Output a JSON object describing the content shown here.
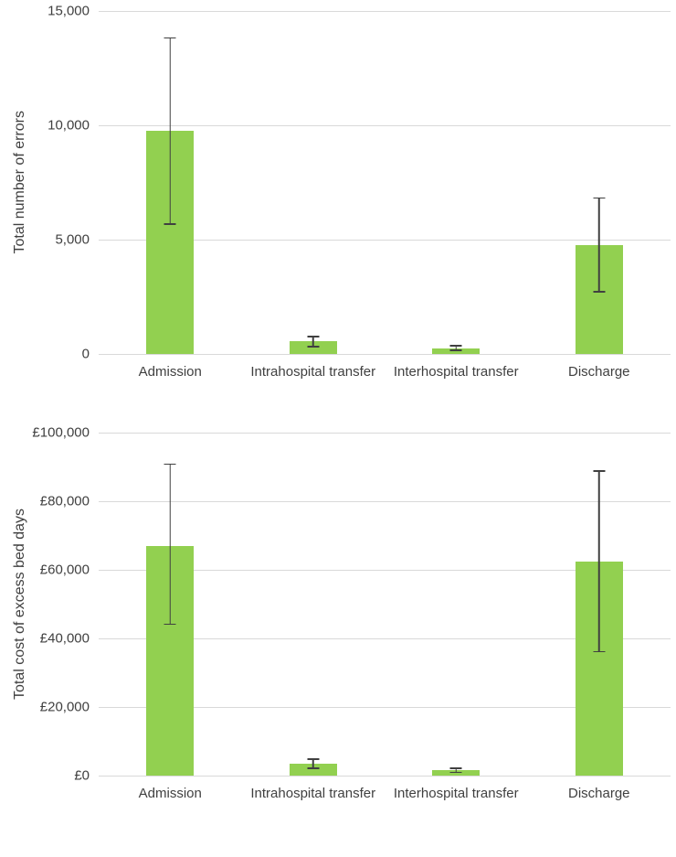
{
  "colors": {
    "bar": "#92d050",
    "error_bar": "#404040",
    "gridline": "#d9d9d9",
    "text": "#404040"
  },
  "chart_data": [
    {
      "type": "bar",
      "title": "",
      "ylabel": "Total number of errors",
      "xlabel": "",
      "categories": [
        "Admission",
        "Intrahospital transfer",
        "Interhospital transfer",
        "Discharge"
      ],
      "values": [
        9750,
        550,
        250,
        4750
      ],
      "error_low": [
        5650,
        300,
        130,
        2700
      ],
      "error_high": [
        13850,
        800,
        400,
        6850
      ],
      "ylim": [
        0,
        15000
      ],
      "yticks": [
        {
          "value": 0,
          "label": "0"
        },
        {
          "value": 5000,
          "label": "5,000"
        },
        {
          "value": 10000,
          "label": "10,000"
        },
        {
          "value": 15000,
          "label": "15,000"
        }
      ],
      "grid": true,
      "legend": false
    },
    {
      "type": "bar",
      "title": "",
      "ylabel": "Total cost of excess bed days",
      "xlabel": "",
      "categories": [
        "Admission",
        "Intrahospital transfer",
        "Interhospital transfer",
        "Discharge"
      ],
      "values": [
        67000,
        3500,
        1500,
        62500
      ],
      "error_low": [
        44000,
        2000,
        700,
        36000
      ],
      "error_high": [
        91000,
        5000,
        2300,
        89000
      ],
      "ylim": [
        0,
        100000
      ],
      "yticks": [
        {
          "value": 0,
          "label": "£0"
        },
        {
          "value": 20000,
          "label": "£20,000"
        },
        {
          "value": 40000,
          "label": "£40,000"
        },
        {
          "value": 60000,
          "label": "£60,000"
        },
        {
          "value": 80000,
          "label": "£80,000"
        },
        {
          "value": 100000,
          "label": "£100,000"
        }
      ],
      "grid": true,
      "legend": false
    }
  ]
}
